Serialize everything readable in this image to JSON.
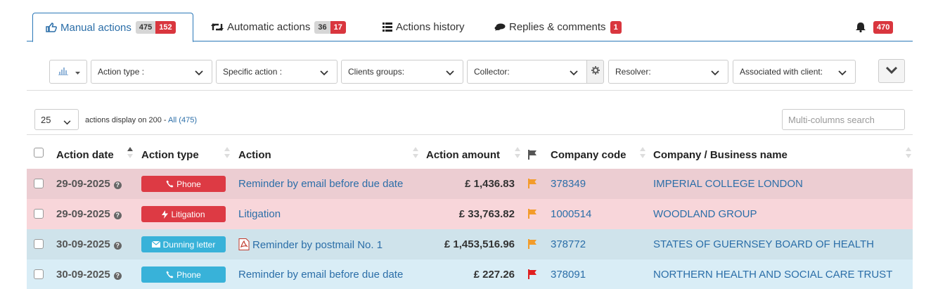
{
  "tabs": [
    {
      "label": "Manual actions",
      "count": "475",
      "alert": "152",
      "icon": "hand-pointer-icon"
    },
    {
      "label": "Automatic actions",
      "count": "36",
      "alert": "17",
      "icon": "retweet-icon"
    },
    {
      "label": "Actions history",
      "icon": "list-icon"
    },
    {
      "label": "Replies & comments",
      "alert": "1",
      "icon": "comments-icon"
    }
  ],
  "notifications": {
    "count": "470",
    "icon": "bell-icon"
  },
  "filters": {
    "chart_icon": "bar-chart-icon",
    "action_type": "Action type :",
    "specific_action": "Specific action :",
    "clients_groups": "Clients groups:",
    "collector": "Collector:",
    "resolver": "Resolver:",
    "associated_client": "Associated with client:"
  },
  "pager": {
    "per_page": "25",
    "info": "actions display on 200 - ",
    "all_link": "All (475)",
    "search_placeholder": "Multi-columns search"
  },
  "columns": {
    "date": "Action date",
    "type": "Action type",
    "action": "Action",
    "amount": "Action amount",
    "code": "Company code",
    "name": "Company / Business name"
  },
  "colors": {
    "phone": "#38b2d9",
    "litigation": "#dd3a44",
    "dunning": "#38b2d9",
    "row_red_1": "#eccdd2",
    "row_red_2": "#f8d6da",
    "row_blue_1": "#cfe3eb",
    "row_blue_2": "#d9edf6",
    "flag_orange": "#f39c2b",
    "flag_red": "#e02020"
  },
  "rows": [
    {
      "date": "29-09-2025",
      "type": "Phone",
      "type_icon": "phone-icon",
      "action": "Reminder by email before due date",
      "amount": "£ 1,436.83",
      "flag": "orange",
      "code": "378349",
      "name": "IMPERIAL COLLEGE LONDON"
    },
    {
      "date": "29-09-2025",
      "type": "Litigation",
      "type_icon": "bolt-icon",
      "action": "Litigation",
      "amount": "£ 33,763.82",
      "flag": "orange",
      "code": "1000514",
      "name": "WOODLAND GROUP"
    },
    {
      "date": "30-09-2025",
      "type": "Dunning letter",
      "type_icon": "envelope-icon",
      "action": "Reminder by postmail No. 1",
      "amount": "£ 1,453,516.96",
      "flag": "orange",
      "code": "378772",
      "name": "STATES OF GUERNSEY BOARD OF HEALTH"
    },
    {
      "date": "30-09-2025",
      "type": "Phone",
      "type_icon": "phone-icon",
      "action": "Reminder by email before due date",
      "amount": "£ 227.26",
      "flag": "red",
      "code": "378091",
      "name": "NORTHERN HEALTH AND SOCIAL CARE TRUST"
    }
  ]
}
